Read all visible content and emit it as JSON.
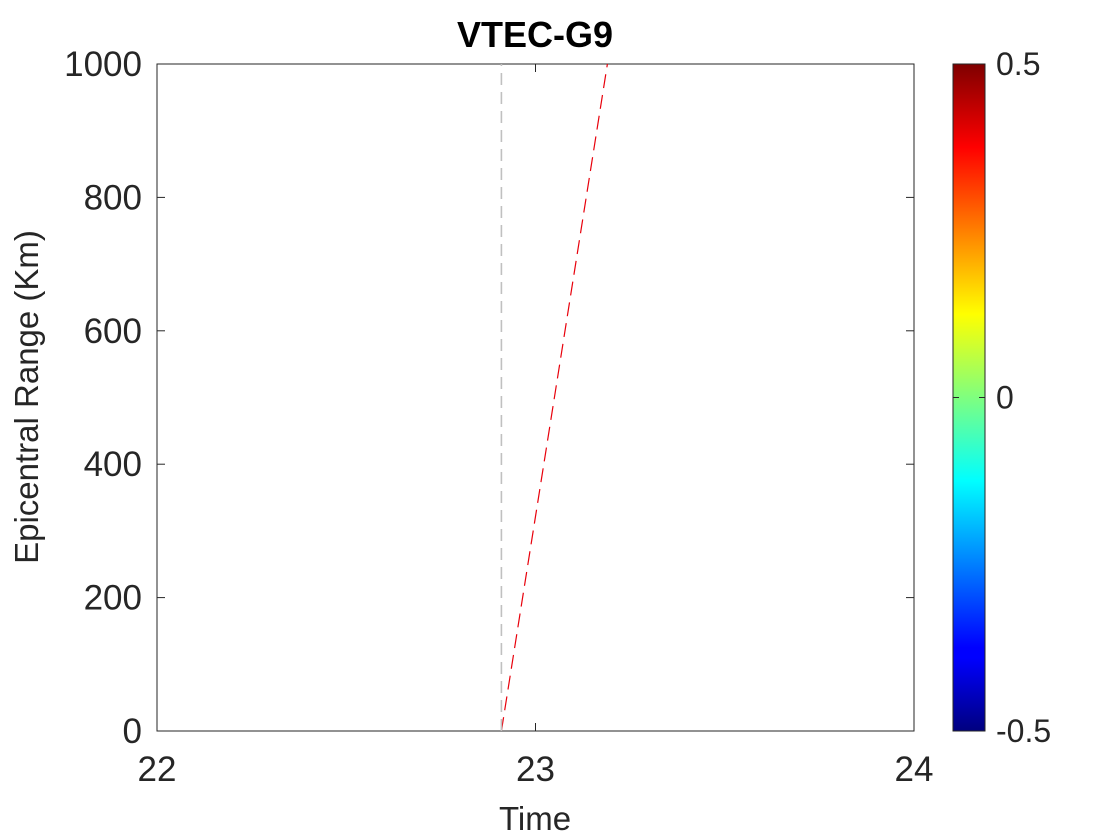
{
  "chart_data": {
    "type": "line",
    "title": "VTEC-G9",
    "xlabel": "Time",
    "ylabel": "Epicentral Range (Km)",
    "xlim": [
      22,
      24
    ],
    "ylim": [
      0,
      1000
    ],
    "xticks": [
      22,
      23,
      24
    ],
    "yticks": [
      0,
      200,
      400,
      600,
      800,
      1000
    ],
    "grid": false,
    "series": [
      {
        "style": "dashed",
        "color": "#e8000b",
        "x": [
          22.91,
          23.19
        ],
        "y": [
          0,
          1000
        ]
      },
      {
        "style": "dashed",
        "color": "#c0c0c0",
        "x": [
          22.91,
          22.91
        ],
        "y": [
          0,
          1000
        ]
      }
    ],
    "colorbar": {
      "colormap": "jet",
      "range": [
        -0.5,
        0.5
      ],
      "ticks": [
        "0.5",
        "0",
        "-0.5"
      ],
      "tick_values": [
        0.5,
        0,
        -0.5
      ],
      "placement": "right"
    }
  }
}
